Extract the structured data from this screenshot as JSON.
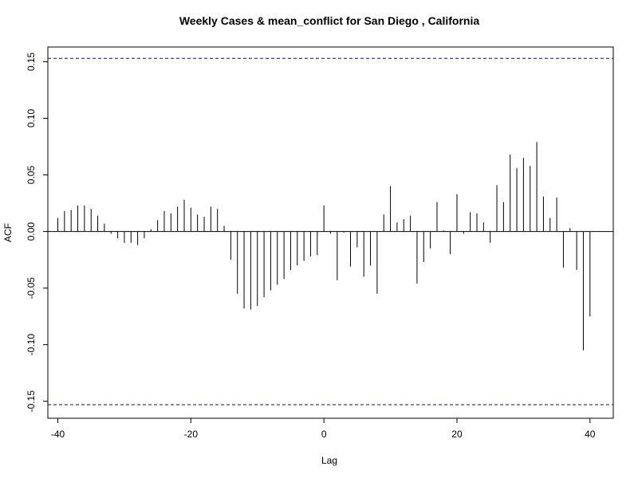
{
  "chart_data": {
    "type": "bar",
    "title": "Weekly Cases & mean_conflict for San Diego , California",
    "xlabel": "Lag",
    "ylabel": "ACF",
    "xlim": [
      -41.5,
      43.5
    ],
    "ylim": [
      -0.165,
      0.163
    ],
    "x_ticks": [
      -40,
      -20,
      0,
      20,
      40
    ],
    "x_tick_labels": [
      "-40",
      "-20",
      "0",
      "20",
      "40"
    ],
    "y_ticks": [
      -0.15,
      -0.1,
      -0.05,
      0.0,
      0.05,
      0.1,
      0.15
    ],
    "y_tick_labels": [
      "-0.15",
      "-0.10",
      "-0.05",
      "0.00",
      "0.05",
      "0.10",
      "0.15"
    ],
    "confidence_bound": 0.153,
    "confidence_color": "#0000cc",
    "bar_color": "#000000",
    "lags": [
      -40,
      -39,
      -38,
      -37,
      -36,
      -35,
      -34,
      -33,
      -32,
      -31,
      -30,
      -29,
      -28,
      -27,
      -26,
      -25,
      -24,
      -23,
      -22,
      -21,
      -20,
      -19,
      -18,
      -17,
      -16,
      -15,
      -14,
      -13,
      -12,
      -11,
      -10,
      -9,
      -8,
      -7,
      -6,
      -5,
      -4,
      -3,
      -2,
      -1,
      0,
      1,
      2,
      3,
      4,
      5,
      6,
      7,
      8,
      9,
      10,
      11,
      12,
      13,
      14,
      15,
      16,
      17,
      18,
      19,
      20,
      21,
      22,
      23,
      24,
      25,
      26,
      27,
      28,
      29,
      30,
      31,
      32,
      33,
      34,
      35,
      36,
      37,
      38,
      39,
      40
    ],
    "acf": [
      0.012,
      0.018,
      0.019,
      0.023,
      0.023,
      0.02,
      0.014,
      0.007,
      -0.002,
      -0.006,
      -0.01,
      -0.01,
      -0.012,
      -0.006,
      0.002,
      0.01,
      0.018,
      0.016,
      0.022,
      0.028,
      0.021,
      0.015,
      0.013,
      0.022,
      0.02,
      0.005,
      -0.025,
      -0.055,
      -0.068,
      -0.069,
      -0.066,
      -0.058,
      -0.052,
      -0.047,
      -0.042,
      -0.034,
      -0.03,
      -0.026,
      -0.022,
      -0.021,
      0.023,
      -0.002,
      -0.043,
      -0.001,
      -0.031,
      -0.014,
      -0.04,
      -0.03,
      -0.055,
      0.015,
      0.04,
      0.008,
      0.011,
      0.014,
      -0.046,
      -0.027,
      -0.015,
      0.026,
      0.001,
      -0.02,
      0.033,
      -0.002,
      0.017,
      0.016,
      0.008,
      -0.01,
      0.041,
      0.026,
      0.068,
      0.056,
      0.065,
      0.058,
      0.079,
      0.031,
      0.012,
      0.03,
      -0.032,
      0.003,
      -0.034,
      -0.105,
      -0.075
    ]
  }
}
